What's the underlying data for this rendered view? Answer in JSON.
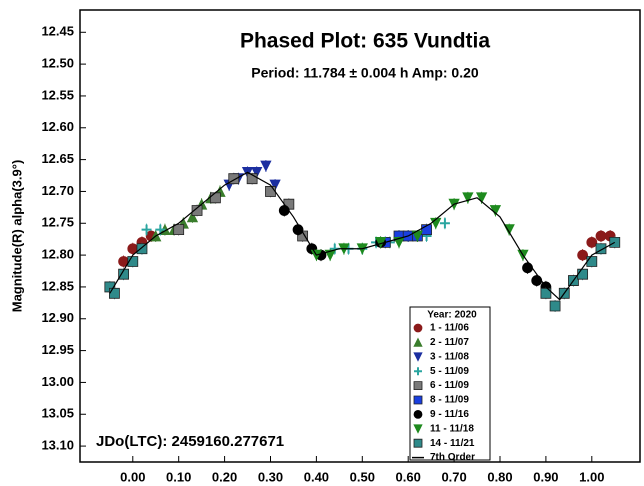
{
  "chart_data": {
    "type": "scatter",
    "title": "Phased Plot: 635 Vundtia",
    "subtitle": "Period: 11.784 ± 0.004 h  Amp: 0.20",
    "y_label": "Magnitude(R) alpha(3.9°)",
    "annotation": "JDo(LTC): 2459160.277671",
    "legend_title": "Year: 2020",
    "legend": "lower right",
    "y_inverted": true,
    "xlim": [
      -0.115,
      1.105
    ],
    "ylim": [
      12.415,
      13.125
    ],
    "xticks": [
      {
        "value": 0,
        "label": "0.00"
      },
      {
        "value": 0.1,
        "label": "0.10"
      },
      {
        "value": 0.2,
        "label": "0.20"
      },
      {
        "value": 0.3,
        "label": "0.30"
      },
      {
        "value": 0.4,
        "label": "0.40"
      },
      {
        "value": 0.5,
        "label": "0.50"
      },
      {
        "value": 0.6,
        "label": "0.60"
      },
      {
        "value": 0.7,
        "label": "0.70"
      },
      {
        "value": 0.8,
        "label": "0.80"
      },
      {
        "value": 0.9,
        "label": "0.90"
      },
      {
        "value": 1,
        "label": "1.00"
      }
    ],
    "yticks": [
      12.45,
      {
        "value": 12.5,
        "label": "12.50"
      },
      12.55,
      {
        "value": 12.6,
        "label": "12.60"
      },
      12.65,
      {
        "value": 12.7,
        "label": "12.70"
      },
      12.75,
      {
        "value": 12.8,
        "label": "12.80"
      },
      12.85,
      {
        "value": 12.9,
        "label": "12.90"
      },
      12.95,
      {
        "value": 13,
        "label": "13.00"
      },
      13.05,
      {
        "value": 13.1,
        "label": "13.10"
      }
    ],
    "series": [
      {
        "name": "1 - 11/06",
        "color": "#8b1a1a",
        "marker": "circle",
        "x": [
          -0.02,
          0.0,
          0.02,
          0.04,
          0.98,
          1.0,
          1.02,
          1.04
        ],
        "y": [
          12.81,
          12.79,
          12.78,
          12.77,
          12.8,
          12.78,
          12.77,
          12.77
        ]
      },
      {
        "name": "2 - 11/07",
        "color": "#3a7d2c",
        "marker": "triangle-up",
        "x": [
          0.05,
          0.07,
          0.09,
          0.11,
          0.13,
          0.15,
          0.17,
          0.19
        ],
        "y": [
          12.77,
          12.76,
          12.76,
          12.75,
          12.74,
          12.72,
          12.71,
          12.7
        ]
      },
      {
        "name": "3 - 11/08",
        "color": "#1c2fa0",
        "marker": "triangle-down",
        "x": [
          0.21,
          0.23,
          0.25,
          0.27,
          0.29,
          0.31
        ],
        "y": [
          12.69,
          12.68,
          12.67,
          12.67,
          12.66,
          12.69
        ]
      },
      {
        "name": "5 - 11/09",
        "color": "#2aa5a0",
        "marker": "plus",
        "x": [
          0.03,
          0.06,
          0.44,
          0.47,
          0.5,
          0.53,
          0.56,
          0.6,
          0.64,
          0.68
        ],
        "y": [
          12.76,
          12.76,
          12.79,
          12.79,
          12.79,
          12.78,
          12.78,
          12.77,
          12.77,
          12.75
        ]
      },
      {
        "name": "6 - 11/09",
        "color": "#7a7a7a",
        "marker": "square",
        "x": [
          0.1,
          0.14,
          0.18,
          0.22,
          0.26,
          0.3,
          0.34,
          0.37
        ],
        "y": [
          12.76,
          12.73,
          12.71,
          12.68,
          12.68,
          12.7,
          12.72,
          12.77
        ]
      },
      {
        "name": "8 - 11/09",
        "color": "#1a3fe0",
        "marker": "square",
        "x": [
          0.55,
          0.58,
          0.6,
          0.62,
          0.64
        ],
        "y": [
          12.78,
          12.77,
          12.77,
          12.77,
          12.76
        ]
      },
      {
        "name": "9 - 11/16",
        "color": "#000000",
        "marker": "circle",
        "x": [
          0.33,
          0.36,
          0.39,
          0.41,
          0.54,
          0.86,
          0.88,
          0.9
        ],
        "y": [
          12.73,
          12.76,
          12.79,
          12.8,
          12.78,
          12.82,
          12.84,
          12.85
        ]
      },
      {
        "name": "11 - 11/18",
        "color": "#1e8a1e",
        "marker": "triangle-down",
        "x": [
          0.4,
          0.43,
          0.46,
          0.5,
          0.54,
          0.58,
          0.62,
          0.66,
          0.7,
          0.73,
          0.76,
          0.79,
          0.82,
          0.85
        ],
        "y": [
          12.8,
          12.8,
          12.79,
          12.79,
          12.78,
          12.78,
          12.77,
          12.75,
          12.72,
          12.71,
          12.71,
          12.73,
          12.76,
          12.8
        ]
      },
      {
        "name": "14 - 11/21",
        "color": "#2f8a8a",
        "marker": "square",
        "x": [
          -0.05,
          -0.04,
          -0.02,
          0.0,
          0.02,
          0.9,
          0.92,
          0.94,
          0.96,
          0.98,
          1.0,
          1.02,
          1.05
        ],
        "y": [
          12.85,
          12.86,
          12.83,
          12.81,
          12.79,
          12.86,
          12.88,
          12.86,
          12.84,
          12.83,
          12.81,
          12.79,
          12.78
        ]
      },
      {
        "name": "7th Order",
        "color": "#000000",
        "marker": "line",
        "x": [
          -0.05,
          0.0,
          0.05,
          0.1,
          0.15,
          0.2,
          0.25,
          0.3,
          0.35,
          0.4,
          0.45,
          0.5,
          0.55,
          0.6,
          0.65,
          0.7,
          0.75,
          0.8,
          0.85,
          0.9,
          0.93,
          0.97,
          1.0,
          1.05
        ],
        "y": [
          12.86,
          12.8,
          12.77,
          12.75,
          12.72,
          12.69,
          12.67,
          12.69,
          12.74,
          12.8,
          12.79,
          12.79,
          12.78,
          12.77,
          12.75,
          12.72,
          12.71,
          12.74,
          12.8,
          12.85,
          12.87,
          12.83,
          12.8,
          12.78
        ]
      }
    ]
  }
}
